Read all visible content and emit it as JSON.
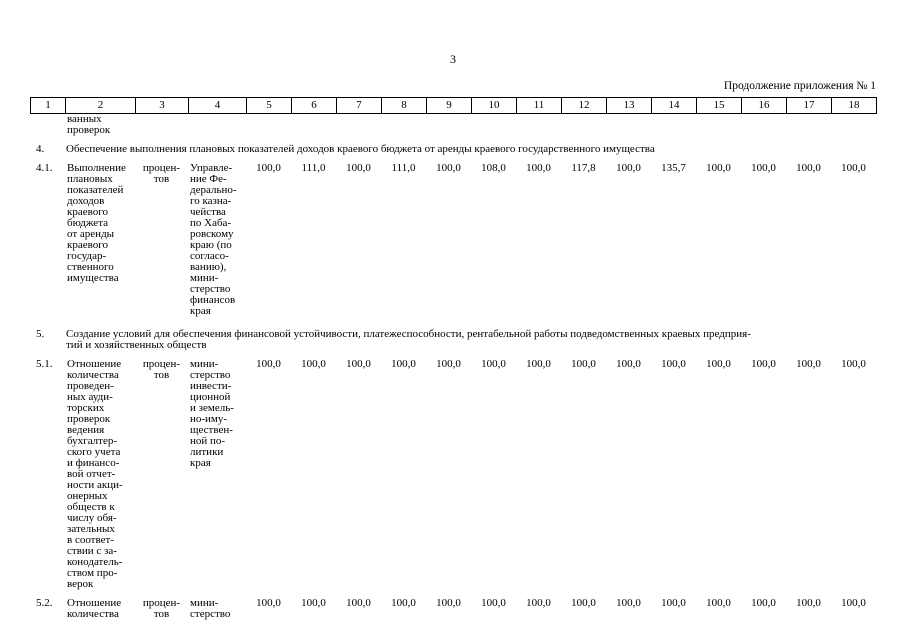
{
  "page": {
    "number": "3",
    "continuation": "Продолжение приложения № 1"
  },
  "table": {
    "column_numbers": [
      "1",
      "2",
      "3",
      "4",
      "5",
      "6",
      "7",
      "8",
      "9",
      "10",
      "11",
      "12",
      "13",
      "14",
      "15",
      "16",
      "17",
      "18"
    ],
    "rows": [
      {
        "type": "carryover",
        "num": "",
        "name": "ванных\nпроверок",
        "unit": "",
        "executor": "",
        "values": [
          "",
          "",
          "",
          "",
          "",
          "",
          "",
          "",
          "",
          "",
          "",
          "",
          "",
          ""
        ]
      },
      {
        "type": "section",
        "num": "4.",
        "text": "Обеспечение выполнения плановых показателей доходов краевого бюджета от аренды краевого государственного имущества"
      },
      {
        "type": "data",
        "num": "4.1.",
        "name": "Выполнение\nплановых\nпоказателей\nдоходов\nкраевого\nбюджета\nот аренды\nкраевого\nгосудар-\nственного\nимущества",
        "unit": "процен-\nтов",
        "executor": "Управле-\nние Фе-\nдерально-\nго казна-\nчейства\nпо Хаба-\nровскому\nкраю (по\nсогласо-\nванию),\nмини-\nстерство\nфинансов\nкрая",
        "values": [
          "100,0",
          "111,0",
          "100,0",
          "111,0",
          "100,0",
          "108,0",
          "100,0",
          "117,8",
          "100,0",
          "135,7",
          "100,0",
          "100,0",
          "100,0",
          "100,0"
        ]
      },
      {
        "type": "section",
        "num": "5.",
        "text": "Создание условий для обеспечения финансовой устойчивости, платежеспособности, рентабельной работы подведомственных краевых предприя-\nтий и хозяйственных обществ"
      },
      {
        "type": "data",
        "num": "5.1.",
        "name": "Отношение\nколичества\nпроведен-\nных ауди-\nторских\nпроверок\nведения\nбухгалтер-\nского учета\nи финансо-\nвой отчет-\nности акци-\nонерных\nобществ к\nчислу обя-\nзательных\nв соответ-\nствии с за-\nконодатель-\nством про-\nверок",
        "unit": "процен-\nтов",
        "executor": "мини-\nстерство\nинвести-\nционной\nи земель-\nно-иму-\nществен-\nной по-\nлитики\nкрая",
        "values": [
          "100,0",
          "100,0",
          "100,0",
          "100,0",
          "100,0",
          "100,0",
          "100,0",
          "100,0",
          "100,0",
          "100,0",
          "100,0",
          "100,0",
          "100,0",
          "100,0"
        ]
      },
      {
        "type": "data",
        "num": "5.2.",
        "name": "Отношение\nколичества",
        "unit": "процен-\nтов",
        "executor": "мини-\nстерство",
        "values": [
          "100,0",
          "100,0",
          "100,0",
          "100,0",
          "100,0",
          "100,0",
          "100,0",
          "100,0",
          "100,0",
          "100,0",
          "100,0",
          "100,0",
          "100,0",
          "100,0"
        ]
      }
    ]
  }
}
